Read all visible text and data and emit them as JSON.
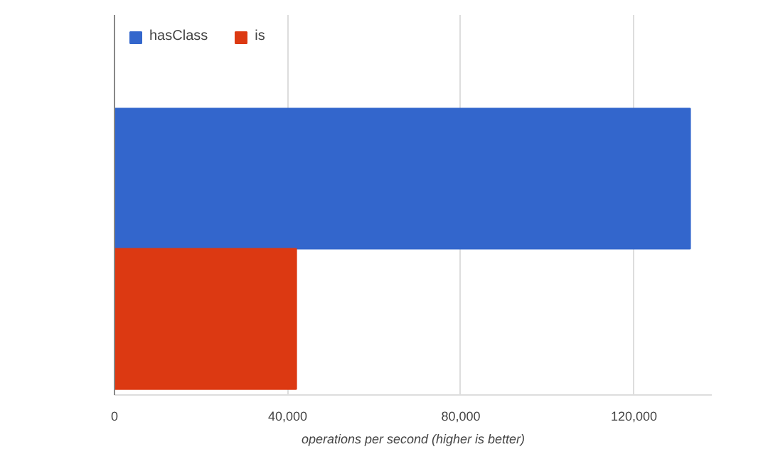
{
  "chart_data": {
    "type": "bar",
    "orientation": "horizontal",
    "categories": [
      null
    ],
    "series": [
      {
        "name": "hasClass",
        "color": "#3366cc",
        "values": [
          133000
        ]
      },
      {
        "name": "is",
        "color": "#dc3912",
        "values": [
          42000
        ]
      }
    ],
    "xlabel": "operations per second (higher is better)",
    "xlim": [
      0,
      138000
    ],
    "xticks": [
      0,
      {
        "value": 40000,
        "label": "40,000"
      },
      {
        "value": 80000,
        "label": "80,000"
      },
      {
        "value": 120000,
        "label": "120,000"
      }
    ],
    "grid": "x",
    "legend": "top left"
  }
}
